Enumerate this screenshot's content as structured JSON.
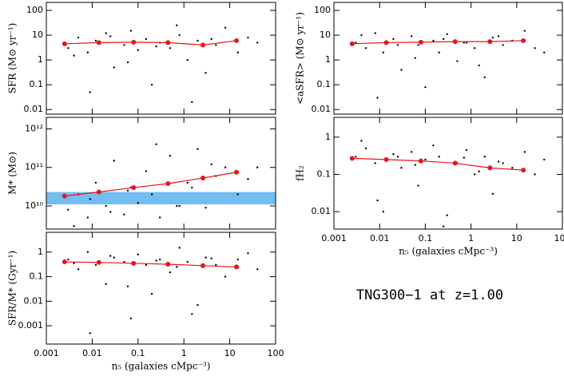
{
  "annotation": "TNG300−1 at z=1.00",
  "chart_data": [
    {
      "type": "scatter",
      "ylabel": "SFR (M⊙ yr⁻¹)",
      "log": true,
      "xlim": [
        0.001,
        100
      ],
      "xticks": [
        0.001,
        0.01,
        0.1,
        1,
        10,
        100
      ],
      "ylim": [
        0.0065,
        210
      ],
      "yticks": [
        0.01,
        0.1,
        1,
        10,
        100
      ],
      "scatter": {
        "color": "#000000",
        "x": [
          0.003,
          0.005,
          0.008,
          0.012,
          0.02,
          0.03,
          0.05,
          0.07,
          0.1,
          0.15,
          0.2,
          0.3,
          0.5,
          0.8,
          1.2,
          2,
          3,
          5,
          8,
          15,
          25,
          40,
          0.004,
          0.009,
          0.025,
          0.06,
          0.25,
          0.7,
          1.5,
          4
        ],
        "y": [
          3,
          8,
          2,
          6,
          12,
          0.5,
          4,
          15,
          2.5,
          7,
          0.1,
          5,
          3,
          10,
          1,
          6,
          0.3,
          4,
          20,
          2,
          8,
          5,
          1.5,
          0.05,
          9,
          0.8,
          3.5,
          25,
          0.02,
          7
        ]
      },
      "series": [
        {
          "color": "#e8141b",
          "x": [
            0.0025,
            0.014,
            0.08,
            0.45,
            2.6,
            14
          ],
          "values": [
            4.5,
            5,
            5.2,
            5,
            4,
            6
          ]
        }
      ]
    },
    {
      "type": "scatter",
      "ylabel": "M* (M⊙)",
      "log": true,
      "xlim": [
        0.001,
        100
      ],
      "xticks": [
        0.001,
        0.01,
        0.1,
        1,
        10,
        100
      ],
      "ylim": [
        2500000000,
        2000000000000
      ],
      "yticks": [
        {
          "value": 10000000000,
          "label": "10¹⁰"
        },
        {
          "value": 100000000000,
          "label": "10¹¹"
        },
        {
          "value": 1000000000000,
          "label": "10¹²"
        }
      ],
      "band": {
        "from": 11000000000,
        "to": 23000000000,
        "color": "#73bdf0"
      },
      "scatter": {
        "color": "#000000",
        "x": [
          0.003,
          0.005,
          0.008,
          0.012,
          0.02,
          0.03,
          0.05,
          0.07,
          0.1,
          0.15,
          0.2,
          0.3,
          0.5,
          0.8,
          1.2,
          2,
          3,
          5,
          8,
          15,
          25,
          40,
          0.004,
          0.009,
          0.025,
          0.06,
          0.25,
          0.7,
          1.5,
          4
        ],
        "y": [
          8000000000.0,
          20000000000.0,
          5000000000.0,
          40000000000.0,
          10000000000.0,
          150000000000.0,
          6000000000.0,
          30000000000.0,
          12000000000.0,
          80000000000.0,
          20000000000.0,
          5000000000.0,
          200000000000.0,
          10000000000.0,
          40000000000.0,
          300000000000.0,
          9000000000.0,
          60000000000.0,
          100000000000.0,
          20000000000.0,
          50000000000.0,
          100000000000.0,
          3000000000.0,
          15000000000.0,
          7000000000.0,
          25000000000.0,
          400000000000.0,
          10000000000.0,
          30000000000.0,
          120000000000.0
        ]
      },
      "series": [
        {
          "color": "#e8141b",
          "x": [
            0.0025,
            0.014,
            0.08,
            0.45,
            2.6,
            14
          ],
          "values": [
            18000000000.0,
            23000000000.0,
            30000000000.0,
            38000000000.0,
            53000000000.0,
            75000000000.0
          ]
        }
      ]
    },
    {
      "type": "scatter",
      "ylabel": "SFR/M* (Gyr⁻¹)",
      "xlabel": "n₅ (galaxies cMpc⁻³)",
      "log": true,
      "xlim": [
        0.001,
        100
      ],
      "xticks": [
        0.001,
        0.01,
        0.1,
        1,
        10,
        100
      ],
      "ylim": [
        0.00018,
        6.4
      ],
      "yticks": [
        0.001,
        0.01,
        0.1,
        1
      ],
      "scatter": {
        "color": "#000000",
        "x": [
          0.003,
          0.005,
          0.008,
          0.012,
          0.02,
          0.03,
          0.05,
          0.07,
          0.1,
          0.15,
          0.2,
          0.3,
          0.5,
          0.8,
          1.2,
          2,
          3,
          5,
          8,
          15,
          25,
          40,
          0.004,
          0.009,
          0.025,
          0.06,
          0.25,
          0.7,
          1.5,
          4
        ],
        "y": [
          0.5,
          0.2,
          1,
          0.3,
          0.05,
          0.6,
          0.4,
          0.002,
          0.8,
          0.3,
          0.02,
          0.5,
          0.15,
          1.5,
          0.4,
          0.007,
          0.6,
          0.3,
          0.1,
          0.5,
          0.9,
          0.2,
          0.35,
          0.0005,
          0.7,
          0.04,
          0.45,
          0.25,
          0.003,
          0.55
        ]
      },
      "series": [
        {
          "color": "#e8141b",
          "x": [
            0.0025,
            0.014,
            0.08,
            0.45,
            2.6,
            14
          ],
          "values": [
            0.4,
            0.38,
            0.35,
            0.32,
            0.28,
            0.25
          ]
        }
      ]
    },
    {
      "type": "scatter",
      "ylabel": "<aSFR> (M⊙ yr⁻¹)",
      "log": true,
      "xlim": [
        0.001,
        100
      ],
      "xticks": [
        0.001,
        0.01,
        0.1,
        1,
        10,
        100
      ],
      "ylim": [
        0.0065,
        210
      ],
      "yticks": [
        0.01,
        0.1,
        1,
        10,
        100
      ],
      "scatter": {
        "color": "#000000",
        "x": [
          0.003,
          0.005,
          0.008,
          0.012,
          0.02,
          0.03,
          0.05,
          0.07,
          0.1,
          0.15,
          0.2,
          0.3,
          0.5,
          0.8,
          1.2,
          2,
          3,
          5,
          8,
          15,
          25,
          40,
          0.004,
          0.009,
          0.025,
          0.06,
          0.25,
          0.7,
          1.5,
          4
        ],
        "y": [
          5,
          3,
          12,
          2,
          7,
          0.4,
          9,
          4,
          0.08,
          6,
          2,
          11,
          0.9,
          5,
          3,
          0.2,
          8,
          4,
          6,
          15,
          3,
          2,
          10,
          0.03,
          4,
          1.2,
          7,
          5,
          0.6,
          9
        ]
      },
      "series": [
        {
          "color": "#e8141b",
          "x": [
            0.0025,
            0.014,
            0.08,
            0.45,
            2.6,
            14
          ],
          "values": [
            4.5,
            5,
            5.2,
            5.5,
            5.5,
            6
          ]
        }
      ]
    },
    {
      "type": "scatter",
      "ylabel": "fH₂",
      "xlabel": "n₅ (galaxies cMpc⁻³)",
      "log": true,
      "xlim": [
        0.001,
        100
      ],
      "xticks": [
        0.001,
        0.01,
        0.1,
        1,
        10,
        100
      ],
      "ylim": [
        0.0034,
        3.4
      ],
      "yticks": [
        0.01,
        0.1,
        1
      ],
      "scatter": {
        "color": "#000000",
        "x": [
          0.003,
          0.005,
          0.008,
          0.012,
          0.02,
          0.03,
          0.05,
          0.07,
          0.1,
          0.15,
          0.2,
          0.3,
          0.5,
          0.8,
          1.2,
          2,
          3,
          5,
          8,
          15,
          25,
          40,
          0.004,
          0.009,
          0.025,
          0.06,
          0.25,
          0.7,
          1.5,
          4
        ],
        "y": [
          0.3,
          0.5,
          0.2,
          0.01,
          0.35,
          0.15,
          0.4,
          0.05,
          0.25,
          0.6,
          0.3,
          0.008,
          0.2,
          0.45,
          0.1,
          0.3,
          0.03,
          0.2,
          0.15,
          0.4,
          0.1,
          0.25,
          0.8,
          0.02,
          0.3,
          0.18,
          0.004,
          0.28,
          0.12,
          0.22
        ]
      },
      "series": [
        {
          "color": "#e8141b",
          "x": [
            0.0025,
            0.014,
            0.08,
            0.45,
            2.6,
            14
          ],
          "values": [
            0.27,
            0.25,
            0.23,
            0.2,
            0.15,
            0.13
          ]
        }
      ]
    }
  ]
}
